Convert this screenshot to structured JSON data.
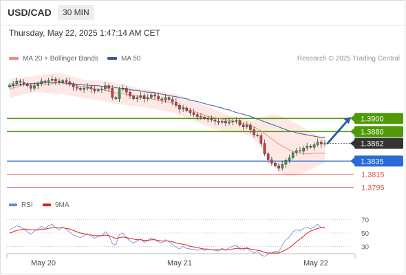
{
  "header": {
    "pair": "USD/CAD",
    "timeframe": "30 MIN"
  },
  "datetime": "Thursday, May 22, 2025 1:47:14 AM CET",
  "legend": {
    "ma20": {
      "label": "MA 20 + Bollinger Bands",
      "color": "#f28b82"
    },
    "ma50": {
      "label": "MA 50",
      "color": "#3c5a99"
    },
    "rsi": {
      "label": "RSI",
      "color": "#5b8ad8"
    },
    "ma9": {
      "label": "9MA",
      "color": "#e01e1e"
    }
  },
  "credit": "Research © 2025 Trading Central",
  "chart_data": [
    {
      "type": "candlestick",
      "pair": "USD/CAD",
      "timeframe": "30 MIN",
      "x_ticks": [
        "May 20",
        "May 21",
        "May 22"
      ],
      "ylim": [
        1.3785,
        1.398
      ],
      "closes": [
        1.3951,
        1.3953,
        1.3957,
        1.3955,
        1.3953,
        1.395,
        1.3946,
        1.395,
        1.3953,
        1.3957,
        1.3955,
        1.3958,
        1.396,
        1.3957,
        1.3955,
        1.3958,
        1.3956,
        1.3952,
        1.3948,
        1.3946,
        1.3944,
        1.3946,
        1.3948,
        1.3945,
        1.3942,
        1.3944,
        1.3945,
        1.395,
        1.3946,
        1.3932,
        1.393,
        1.3944,
        1.3946,
        1.394,
        1.3934,
        1.393,
        1.3932,
        1.3935,
        1.393,
        1.3932,
        1.3936,
        1.3934,
        1.393,
        1.3928,
        1.3932,
        1.3929,
        1.3925,
        1.392,
        1.3914,
        1.3916,
        1.3912,
        1.3909,
        1.3906,
        1.3903,
        1.3902,
        1.39,
        1.3899,
        1.3898,
        1.3896,
        1.3894,
        1.3896,
        1.3893,
        1.3895,
        1.3896,
        1.3897,
        1.389,
        1.3887,
        1.389,
        1.3883,
        1.3875,
        1.3874,
        1.3862,
        1.3846,
        1.3837,
        1.3832,
        1.3828,
        1.3824,
        1.383,
        1.3836,
        1.384,
        1.3848,
        1.3851,
        1.385,
        1.3855,
        1.3858,
        1.3856,
        1.386,
        1.3864,
        1.3861,
        1.3862
      ],
      "ma20": [
        1.3944,
        1.3946,
        1.3948,
        1.395,
        1.3952,
        1.3953,
        1.3953,
        1.3953,
        1.3953,
        1.3953,
        1.3952,
        1.3952,
        1.3953,
        1.3954,
        1.3955,
        1.3954,
        1.3953,
        1.3952,
        1.3951,
        1.395,
        1.3949,
        1.3948,
        1.3947,
        1.3946,
        1.3945,
        1.3944,
        1.3944,
        1.3943,
        1.3942,
        1.394,
        1.3939,
        1.3938,
        1.3938,
        1.3937,
        1.3936,
        1.3935,
        1.3934,
        1.3933,
        1.3932,
        1.3931,
        1.393,
        1.3929,
        1.3928,
        1.3927,
        1.3926,
        1.3925,
        1.3923,
        1.3921,
        1.3919,
        1.3917,
        1.3915,
        1.3913,
        1.3911,
        1.3909,
        1.3907,
        1.3905,
        1.3903,
        1.3902,
        1.3901,
        1.39,
        1.3899,
        1.3898,
        1.3897,
        1.3896,
        1.3895,
        1.3894,
        1.3892,
        1.3891,
        1.3889,
        1.3887,
        1.3884,
        1.3881,
        1.3877,
        1.3873,
        1.3869,
        1.3865,
        1.3861,
        1.3858,
        1.3855,
        1.3852,
        1.385,
        1.3848,
        1.3847,
        1.3847,
        1.3846,
        1.3846,
        1.3847,
        1.3847,
        1.3847,
        1.3847
      ],
      "bb_upper": [
        1.396,
        1.3961,
        1.3962,
        1.3962,
        1.3963,
        1.3964,
        1.3964,
        1.3965,
        1.3966,
        1.3966,
        1.3967,
        1.3968,
        1.3968,
        1.3969,
        1.3969,
        1.3968,
        1.3967,
        1.3966,
        1.3964,
        1.3962,
        1.396,
        1.3959,
        1.3959,
        1.3958,
        1.3958,
        1.3958,
        1.3957,
        1.3957,
        1.3956,
        1.3955,
        1.3954,
        1.3953,
        1.3952,
        1.3951,
        1.395,
        1.3948,
        1.3947,
        1.3946,
        1.3945,
        1.3944,
        1.3943,
        1.3942,
        1.3941,
        1.394,
        1.394,
        1.3939,
        1.3938,
        1.3937,
        1.3935,
        1.3933,
        1.3931,
        1.3929,
        1.3926,
        1.3924,
        1.3922,
        1.392,
        1.3918,
        1.3916,
        1.3913,
        1.3911,
        1.3909,
        1.3907,
        1.3905,
        1.3903,
        1.3902,
        1.3901,
        1.39,
        1.3899,
        1.3897,
        1.3897,
        1.3898,
        1.39,
        1.3902,
        1.3905,
        1.3906,
        1.3906,
        1.3905,
        1.3903,
        1.39,
        1.3898,
        1.3895,
        1.3892,
        1.3889,
        1.3886,
        1.3883,
        1.388,
        1.3877,
        1.3875,
        1.3874,
        1.3873
      ],
      "bb_lower": [
        1.393,
        1.3932,
        1.3934,
        1.3935,
        1.3937,
        1.3938,
        1.3939,
        1.394,
        1.394,
        1.394,
        1.3939,
        1.3938,
        1.3938,
        1.3938,
        1.3938,
        1.3937,
        1.3936,
        1.3935,
        1.3934,
        1.3933,
        1.3932,
        1.3931,
        1.393,
        1.3929,
        1.3928,
        1.3928,
        1.3927,
        1.3926,
        1.3924,
        1.3923,
        1.3922,
        1.3921,
        1.3921,
        1.392,
        1.3919,
        1.3919,
        1.3919,
        1.3918,
        1.3917,
        1.3916,
        1.3915,
        1.3914,
        1.3913,
        1.3912,
        1.3911,
        1.391,
        1.3909,
        1.3907,
        1.3905,
        1.3903,
        1.3901,
        1.3899,
        1.3896,
        1.3894,
        1.3892,
        1.389,
        1.3888,
        1.3886,
        1.3884,
        1.3882,
        1.3881,
        1.388,
        1.3879,
        1.3879,
        1.3879,
        1.3878,
        1.3877,
        1.3875,
        1.3873,
        1.3868,
        1.3862,
        1.3855,
        1.3847,
        1.3838,
        1.3831,
        1.3825,
        1.382,
        1.3816,
        1.3813,
        1.3812,
        1.3812,
        1.3813,
        1.3815,
        1.3817,
        1.382,
        1.3822,
        1.3825,
        1.3828,
        1.383,
        1.3832
      ],
      "ma50": [
        1.3949,
        1.395,
        1.3951,
        1.3952,
        1.3952,
        1.3952,
        1.3953,
        1.3953,
        1.3954,
        1.3954,
        1.3955,
        1.3955,
        1.3955,
        1.3955,
        1.3955,
        1.3954,
        1.3954,
        1.3953,
        1.3953,
        1.3952,
        1.3952,
        1.3951,
        1.3951,
        1.395,
        1.395,
        1.395,
        1.3949,
        1.3949,
        1.3948,
        1.3948,
        1.3947,
        1.3946,
        1.3946,
        1.3945,
        1.3944,
        1.3943,
        1.3943,
        1.3942,
        1.3941,
        1.394,
        1.394,
        1.3939,
        1.3938,
        1.3937,
        1.3936,
        1.3935,
        1.3934,
        1.3933,
        1.3932,
        1.3931,
        1.393,
        1.3928,
        1.3927,
        1.3926,
        1.3924,
        1.3923,
        1.3921,
        1.392,
        1.3919,
        1.3917,
        1.3916,
        1.3914,
        1.3913,
        1.3911,
        1.3909,
        1.3908,
        1.3906,
        1.3905,
        1.3903,
        1.3901,
        1.3899,
        1.3897,
        1.3895,
        1.3893,
        1.3891,
        1.3889,
        1.3887,
        1.3885,
        1.3883,
        1.3881,
        1.388,
        1.3878,
        1.3877,
        1.3876,
        1.3875,
        1.3874,
        1.3873,
        1.3872,
        1.3871,
        1.3871
      ],
      "levels": [
        {
          "value": 1.39,
          "label": "1.3900",
          "kind": "resistance",
          "color": "#4e9a06"
        },
        {
          "value": 1.388,
          "label": "1.3880",
          "kind": "resistance",
          "color": "#4e9a06"
        },
        {
          "value": 1.3862,
          "label": "1.3862",
          "kind": "last",
          "color": "#333333"
        },
        {
          "value": 1.3835,
          "label": "1.3835",
          "kind": "pivot",
          "color": "#2a6ad6"
        },
        {
          "value": 1.3815,
          "label": "1.3815",
          "kind": "support",
          "color": "#e05555"
        },
        {
          "value": 1.3795,
          "label": "1.3795",
          "kind": "support",
          "color": "#e05555"
        }
      ]
    },
    {
      "type": "line",
      "name": "RSI",
      "yticks": [
        70,
        50,
        30
      ],
      "ylim": [
        20,
        80
      ],
      "rsi": [
        55,
        58,
        61,
        59,
        56,
        52,
        48,
        53,
        56,
        60,
        57,
        61,
        63,
        58,
        55,
        59,
        56,
        51,
        47,
        45,
        43,
        46,
        49,
        45,
        42,
        45,
        46,
        52,
        47,
        34,
        32,
        48,
        50,
        43,
        38,
        35,
        38,
        41,
        36,
        39,
        43,
        40,
        37,
        35,
        40,
        37,
        33,
        29,
        26,
        30,
        27,
        26,
        25,
        24,
        25,
        24,
        26,
        25,
        24,
        23,
        27,
        24,
        28,
        30,
        32,
        26,
        24,
        29,
        23,
        20,
        22,
        17,
        15,
        18,
        20,
        23,
        22,
        32,
        40,
        44,
        52,
        55,
        53,
        57,
        59,
        56,
        60,
        63,
        58,
        59
      ],
      "ma9": [
        50,
        52,
        54,
        55,
        56,
        56,
        55,
        55,
        55,
        56,
        56,
        57,
        58,
        58,
        58,
        58,
        57,
        56,
        54,
        52,
        50,
        49,
        48,
        47,
        46,
        46,
        46,
        47,
        46,
        44,
        42,
        43,
        44,
        43,
        42,
        41,
        40,
        40,
        39,
        39,
        40,
        40,
        39,
        38,
        38,
        38,
        37,
        35,
        34,
        33,
        32,
        30,
        29,
        28,
        27,
        26,
        26,
        25,
        25,
        25,
        25,
        25,
        25,
        26,
        27,
        27,
        27,
        27,
        26,
        25,
        24,
        23,
        21,
        20,
        20,
        20,
        20,
        22,
        25,
        28,
        32,
        37,
        41,
        45,
        50,
        53,
        55,
        57,
        58,
        59
      ]
    }
  ]
}
